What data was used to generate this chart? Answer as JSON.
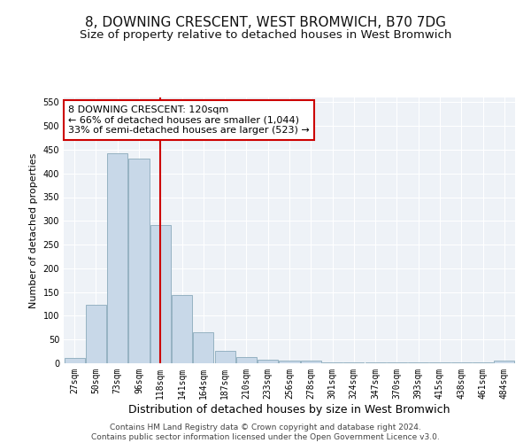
{
  "title": "8, DOWNING CRESCENT, WEST BROMWICH, B70 7DG",
  "subtitle": "Size of property relative to detached houses in West Bromwich",
  "xlabel": "Distribution of detached houses by size in West Bromwich",
  "ylabel": "Number of detached properties",
  "categories": [
    "27sqm",
    "50sqm",
    "73sqm",
    "96sqm",
    "118sqm",
    "141sqm",
    "164sqm",
    "187sqm",
    "210sqm",
    "233sqm",
    "256sqm",
    "278sqm",
    "301sqm",
    "324sqm",
    "347sqm",
    "370sqm",
    "393sqm",
    "415sqm",
    "438sqm",
    "461sqm",
    "484sqm"
  ],
  "values": [
    12,
    123,
    443,
    432,
    292,
    143,
    65,
    27,
    13,
    8,
    5,
    5,
    2,
    1,
    1,
    1,
    1,
    1,
    1,
    1,
    5
  ],
  "bar_color": "#c8d8e8",
  "bar_edge_color": "#8aaabb",
  "vline_x": 4,
  "vline_color": "#cc0000",
  "annotation_text": "8 DOWNING CRESCENT: 120sqm\n← 66% of detached houses are smaller (1,044)\n33% of semi-detached houses are larger (523) →",
  "annotation_box_color": "#ffffff",
  "annotation_box_edgecolor": "#cc0000",
  "ylim": [
    0,
    560
  ],
  "yticks": [
    0,
    50,
    100,
    150,
    200,
    250,
    300,
    350,
    400,
    450,
    500,
    550
  ],
  "footer_line1": "Contains HM Land Registry data © Crown copyright and database right 2024.",
  "footer_line2": "Contains public sector information licensed under the Open Government Licence v3.0.",
  "title_fontsize": 11,
  "subtitle_fontsize": 9.5,
  "xlabel_fontsize": 9,
  "ylabel_fontsize": 8,
  "tick_fontsize": 7,
  "annotation_fontsize": 8,
  "footer_fontsize": 6.5,
  "background_color": "#eef2f7"
}
